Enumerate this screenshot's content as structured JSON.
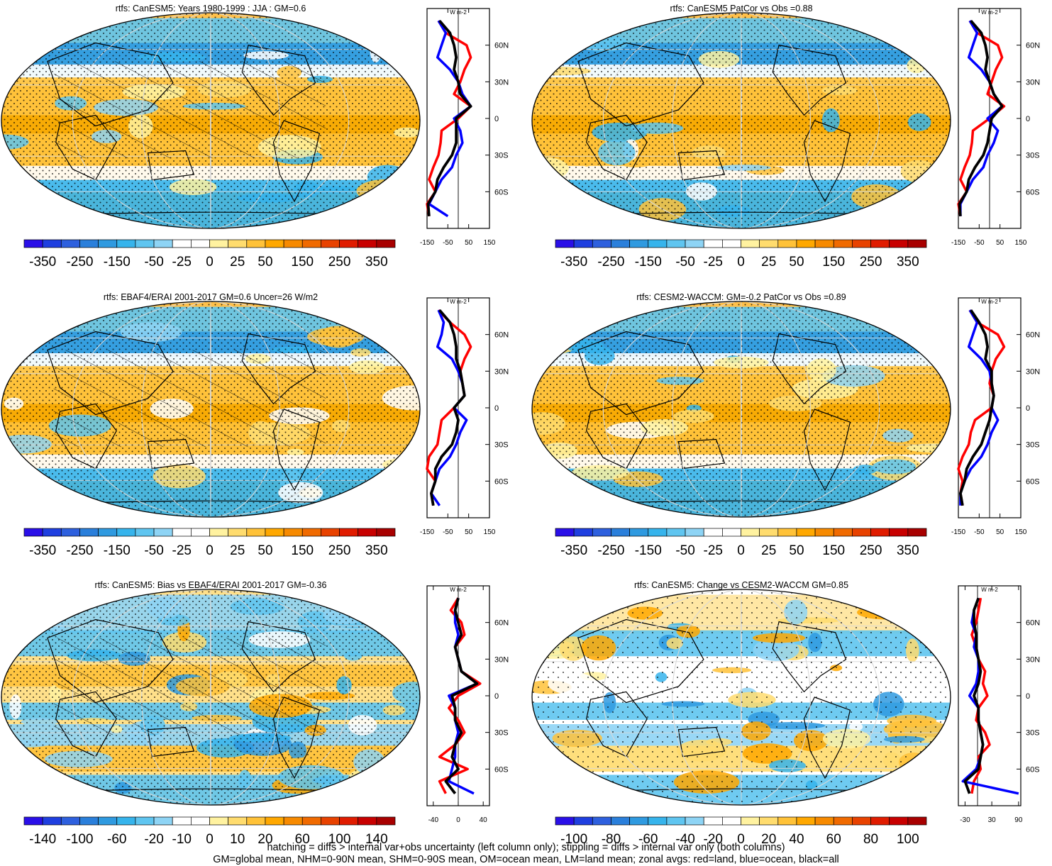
{
  "chart_data": [
    {
      "type": "heatmap",
      "panel": "map",
      "title": "rtfs: CanESM5: Years 1980-1999 : JJA : GM=0.6",
      "colorbar_labels": [
        "-350",
        "-250",
        "-150",
        "-50",
        "-25",
        "0",
        "25",
        "50",
        "150",
        "250",
        "350"
      ],
      "zonal": {
        "units": "W m-2",
        "xticks": [
          "-150",
          "-50",
          "50",
          "150"
        ],
        "xlim": [
          -150,
          150
        ],
        "yticks": [
          "60N",
          "30N",
          "0",
          "30S",
          "60S"
        ],
        "land": {
          "lat": [
            80,
            70,
            60,
            50,
            40,
            30,
            20,
            10,
            0,
            -10,
            -20,
            -30,
            -40,
            -50,
            -60,
            -70,
            -80
          ],
          "values": [
            -95,
            -60,
            40,
            60,
            30,
            10,
            -20,
            60,
            0,
            -80,
            -85,
            -95,
            -120,
            -140,
            -110,
            -150,
            -140
          ]
        },
        "ocean": {
          "lat": [
            80,
            70,
            60,
            50,
            40,
            30,
            20,
            10,
            0,
            -10,
            -20,
            -30,
            -40,
            -50,
            -60,
            -70,
            -80
          ],
          "values": [
            -95,
            -60,
            -80,
            -100,
            -40,
            0,
            20,
            60,
            -20,
            10,
            20,
            -10,
            -30,
            -80,
            -110,
            -140,
            -50
          ]
        },
        "all": {
          "lat": [
            80,
            70,
            60,
            50,
            40,
            30,
            20,
            10,
            0,
            -10,
            -20,
            -30,
            -40,
            -50,
            -60,
            -70,
            -80
          ],
          "values": [
            -90,
            -40,
            -20,
            -10,
            -20,
            0,
            10,
            60,
            -10,
            -10,
            -10,
            -30,
            -70,
            -100,
            -110,
            -145,
            -140
          ]
        }
      }
    },
    {
      "type": "heatmap",
      "panel": "map",
      "title": "rtfs: CanESM5 PatCor vs Obs =0.88",
      "colorbar_labels": [
        "-350",
        "-250",
        "-150",
        "-50",
        "-25",
        "0",
        "25",
        "50",
        "150",
        "250",
        "350"
      ],
      "zonal": {
        "units": "W m-2",
        "xticks": [
          "-150",
          "-50",
          "50",
          "150"
        ],
        "xlim": [
          -150,
          150
        ],
        "yticks": [
          "60N",
          "30N",
          "0",
          "30S",
          "60S"
        ],
        "land": {
          "lat": [
            80,
            70,
            60,
            50,
            40,
            30,
            20,
            10,
            0,
            -10,
            -20,
            -30,
            -40,
            -50,
            -60,
            -70,
            -80
          ],
          "values": [
            -95,
            -60,
            40,
            60,
            30,
            10,
            -10,
            70,
            0,
            -80,
            -85,
            -95,
            -120,
            -140,
            -110,
            -150,
            -140
          ]
        },
        "ocean": {
          "lat": [
            80,
            70,
            60,
            50,
            40,
            30,
            20,
            10,
            0,
            -10,
            -20,
            -30,
            -40,
            -50,
            -60,
            -70,
            -80
          ],
          "values": [
            -95,
            -60,
            -80,
            -100,
            -40,
            0,
            20,
            60,
            -10,
            40,
            20,
            -10,
            -30,
            -80,
            -110,
            -140,
            -140
          ]
        },
        "all": {
          "lat": [
            80,
            70,
            60,
            50,
            40,
            30,
            20,
            10,
            0,
            -10,
            -20,
            -30,
            -40,
            -50,
            -60,
            -70,
            -80
          ],
          "values": [
            -90,
            -40,
            -20,
            -10,
            -20,
            0,
            20,
            60,
            10,
            0,
            -10,
            -30,
            -70,
            -100,
            -110,
            -145,
            -140
          ]
        }
      }
    },
    {
      "type": "heatmap",
      "panel": "map",
      "title": "rtfs: EBAF4/ERAI 2001-2017 GM=0.6 Uncer=26 W/m2",
      "colorbar_labels": [
        "-350",
        "-250",
        "-150",
        "-50",
        "-25",
        "0",
        "25",
        "50",
        "150",
        "250",
        "350"
      ],
      "zonal": {
        "units": "W m-2",
        "xticks": [
          "-150",
          "-50",
          "50",
          "150"
        ],
        "xlim": [
          -150,
          150
        ],
        "yticks": [
          "60N",
          "30N",
          "0",
          "30S",
          "60S"
        ],
        "land": {
          "lat": [
            80,
            70,
            60,
            50,
            40,
            30,
            20,
            10,
            0,
            -10,
            -20,
            -30,
            -40,
            -50,
            -60,
            -70,
            -80
          ],
          "values": [
            -95,
            -40,
            30,
            60,
            30,
            10,
            20,
            30,
            -20,
            -80,
            -90,
            -100,
            -140,
            -150,
            -110,
            -130,
            -120
          ]
        },
        "ocean": {
          "lat": [
            80,
            70,
            60,
            50,
            40,
            30,
            20,
            10,
            0,
            -10,
            -20,
            -30,
            -40,
            -50,
            -60,
            -70,
            -80
          ],
          "values": [
            -95,
            -70,
            -80,
            -100,
            -30,
            0,
            20,
            30,
            -20,
            40,
            10,
            -10,
            -40,
            -90,
            -110,
            -130,
            -90
          ]
        },
        "all": {
          "lat": [
            80,
            70,
            60,
            50,
            40,
            30,
            20,
            10,
            0,
            -10,
            -20,
            -30,
            -40,
            -50,
            -60,
            -70,
            -80
          ],
          "values": [
            -90,
            -40,
            -20,
            -10,
            -10,
            10,
            20,
            30,
            -20,
            0,
            -10,
            -30,
            -80,
            -110,
            -110,
            -130,
            -120
          ]
        }
      }
    },
    {
      "type": "heatmap",
      "panel": "map",
      "title": "rtfs: CESM2-WACCM: GM=-0.2 PatCor vs Obs =0.89",
      "colorbar_labels": [
        "-350",
        "-250",
        "-150",
        "-50",
        "-25",
        "0",
        "25",
        "50",
        "150",
        "250",
        "350"
      ],
      "zonal": {
        "units": "W m-2",
        "xticks": [
          "-150",
          "-50",
          "50",
          "150"
        ],
        "xlim": [
          -150,
          150
        ],
        "yticks": [
          "60N",
          "30N",
          "0",
          "30S",
          "60S"
        ],
        "land": {
          "lat": [
            80,
            70,
            60,
            50,
            40,
            30,
            20,
            10,
            0,
            -10,
            -20,
            -30,
            -40,
            -50,
            -60,
            -70,
            -80
          ],
          "values": [
            -95,
            -60,
            40,
            70,
            30,
            10,
            0,
            20,
            10,
            -70,
            -90,
            -100,
            -130,
            -150,
            -130,
            -140,
            -130
          ]
        },
        "ocean": {
          "lat": [
            80,
            70,
            60,
            50,
            40,
            30,
            20,
            10,
            0,
            -10,
            -20,
            -30,
            -40,
            -50,
            -60,
            -70,
            -80
          ],
          "values": [
            -95,
            -60,
            -80,
            -100,
            -40,
            0,
            10,
            20,
            10,
            40,
            10,
            -10,
            -40,
            -90,
            -120,
            -140,
            -140
          ]
        },
        "all": {
          "lat": [
            80,
            70,
            60,
            50,
            40,
            30,
            20,
            10,
            0,
            -10,
            -20,
            -30,
            -40,
            -50,
            -60,
            -70,
            -80
          ],
          "values": [
            -90,
            -50,
            -20,
            -10,
            -20,
            10,
            10,
            20,
            10,
            0,
            -20,
            -40,
            -80,
            -110,
            -120,
            -140,
            -130
          ]
        }
      }
    },
    {
      "type": "heatmap",
      "panel": "map",
      "title": "rtfs: CanESM5: Bias vs EBAF4/ERAI 2001-2017 GM=-0.36",
      "colorbar_labels": [
        "-140",
        "-100",
        "-60",
        "-20",
        "-10",
        "0",
        "10",
        "20",
        "60",
        "100",
        "140"
      ],
      "zonal": {
        "units": "W m-2",
        "xticks": [
          "-40",
          "0",
          "40"
        ],
        "xlim": [
          -50,
          50
        ],
        "yticks": [
          "60N",
          "30N",
          "0",
          "30S",
          "60S"
        ],
        "land": {
          "lat": [
            80,
            70,
            60,
            50,
            40,
            30,
            20,
            10,
            0,
            -10,
            -20,
            -30,
            -40,
            -50,
            -60,
            -70,
            -80
          ],
          "values": [
            0,
            -12,
            5,
            10,
            -5,
            0,
            5,
            35,
            0,
            -15,
            0,
            10,
            -5,
            -30,
            15,
            -30,
            -20
          ]
        },
        "ocean": {
          "lat": [
            80,
            70,
            60,
            50,
            40,
            30,
            20,
            10,
            0,
            -10,
            -20,
            -30,
            -40,
            -50,
            -60,
            -70,
            -80
          ],
          "values": [
            0,
            -5,
            -5,
            0,
            -5,
            0,
            5,
            30,
            -15,
            -5,
            -5,
            0,
            -5,
            -5,
            -10,
            -15,
            25
          ]
        },
        "all": {
          "lat": [
            80,
            70,
            60,
            50,
            40,
            30,
            20,
            10,
            0,
            -10,
            -20,
            -30,
            -40,
            -50,
            -60,
            -70,
            -80
          ],
          "values": [
            0,
            -5,
            0,
            5,
            -5,
            0,
            5,
            30,
            -10,
            -5,
            -5,
            5,
            -5,
            -10,
            0,
            -20,
            -5
          ]
        }
      }
    },
    {
      "type": "heatmap",
      "panel": "map",
      "title": "rtfs: CanESM5: Change vs CESM2-WACCM GM=0.85",
      "colorbar_labels": [
        "-100",
        "-80",
        "-60",
        "-40",
        "-20",
        "0",
        "20",
        "40",
        "60",
        "80",
        "100"
      ],
      "zonal": {
        "units": "W m-2",
        "xticks": [
          "-30",
          "30",
          "90"
        ],
        "xlim": [
          -45,
          95
        ],
        "yticks": [
          "60N",
          "30N",
          "0",
          "30S",
          "60S"
        ],
        "land": {
          "lat": [
            80,
            70,
            60,
            50,
            40,
            30,
            20,
            10,
            0,
            -10,
            -20,
            -30,
            -40,
            -50,
            -60,
            -70,
            -80
          ],
          "values": [
            5,
            0,
            -5,
            -15,
            -5,
            0,
            15,
            10,
            20,
            0,
            -5,
            15,
            25,
            0,
            5,
            -10,
            -15
          ]
        },
        "ocean": {
          "lat": [
            80,
            70,
            60,
            50,
            40,
            30,
            20,
            10,
            0,
            -10,
            -20,
            -30,
            -40,
            -50,
            -60,
            -70,
            -80
          ],
          "values": [
            0,
            -10,
            -15,
            -5,
            -10,
            0,
            0,
            -5,
            -20,
            0,
            0,
            5,
            10,
            5,
            -5,
            -35,
            90
          ]
        },
        "all": {
          "lat": [
            80,
            70,
            60,
            50,
            40,
            30,
            20,
            10,
            0,
            -10,
            -20,
            -30,
            -40,
            -50,
            -60,
            -70,
            -80
          ],
          "values": [
            0,
            -10,
            -10,
            -5,
            -5,
            0,
            5,
            0,
            -10,
            0,
            0,
            5,
            10,
            5,
            0,
            -30,
            -20
          ]
        }
      }
    }
  ],
  "footer": {
    "line1": "hatching = diffs > internal var+obs uncertainty (left column only); stippling = diffs > internal var only (both columns)",
    "line2": "GM=global mean, NHM=0-90N mean, SHM=0-90S mean, OM=ocean mean, LM=land mean; zonal avgs: red=land, blue=ocean, black=all"
  },
  "colors": {
    "land": "#ff0000",
    "ocean": "#0000ff",
    "all": "#000000",
    "palette": [
      "#2a0fe8",
      "#1f3fe0",
      "#2e60de",
      "#2a7fdb",
      "#2f9ae0",
      "#36b4ec",
      "#5fc5f0",
      "#8ed4f5",
      "#ffffff",
      "#ffffff",
      "#fff2a0",
      "#ffdc6e",
      "#ffc238",
      "#ffa800",
      "#f78a00",
      "#f06a00",
      "#e84200",
      "#e01c00",
      "#c80000",
      "#a80000"
    ]
  }
}
